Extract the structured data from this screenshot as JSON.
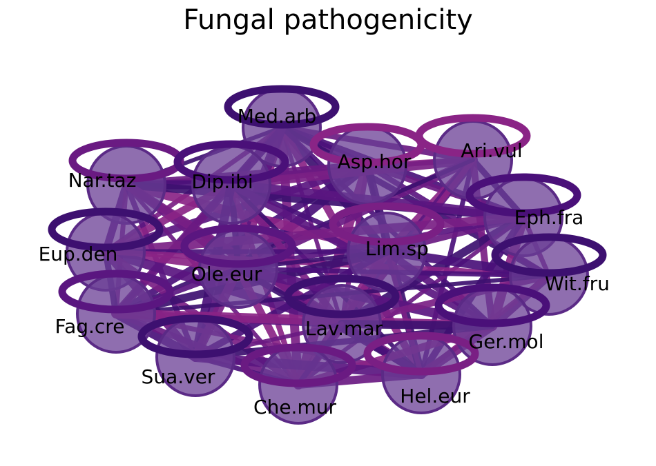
{
  "title": "Fungal pathogenicity",
  "colors": {
    "edge_palette": [
      "#3d1070",
      "#4a1079",
      "#5a1680",
      "#6a1a82",
      "#7a1f84",
      "#8a2486"
    ],
    "node_fill": "#6a3d94",
    "node_stroke": "#5b2a86",
    "background": "#ffffff"
  },
  "nodes": [
    {
      "id": "Med.arb",
      "label": "Med.arb",
      "color": "#3d1070"
    },
    {
      "id": "Asp.hor",
      "label": "Asp.hor",
      "color": "#8a2486"
    },
    {
      "id": "Ari.vul",
      "label": "Ari.vul",
      "color": "#8a2486"
    },
    {
      "id": "Nar.taz",
      "label": "Nar.taz",
      "color": "#6a1a82"
    },
    {
      "id": "Dip.ibi",
      "label": "Dip.ibi",
      "color": "#4a1079"
    },
    {
      "id": "Eph.fra",
      "label": "Eph.fra",
      "color": "#4a1079"
    },
    {
      "id": "Eup.den",
      "label": "Eup.den",
      "color": "#3d1070"
    },
    {
      "id": "Lim.sp",
      "label": "Lim.sp",
      "color": "#7a1f84"
    },
    {
      "id": "Ole.eur",
      "label": "Ole.eur",
      "color": "#5a1680"
    },
    {
      "id": "Wit.fru",
      "label": "Wit.fru",
      "color": "#3d1070"
    },
    {
      "id": "Fag.cre",
      "label": "Fag.cre",
      "color": "#5a1680"
    },
    {
      "id": "Lav.mar",
      "label": "Lav.mar",
      "color": "#3d1070"
    },
    {
      "id": "Ger.mol",
      "label": "Ger.mol",
      "color": "#4a1079"
    },
    {
      "id": "Sua.ver",
      "label": "Sua.ver",
      "color": "#3d1070"
    },
    {
      "id": "Che.mur",
      "label": "Che.mur",
      "color": "#6a1a82"
    },
    {
      "id": "Hel.eur",
      "label": "Hel.eur",
      "color": "#7a1f84"
    }
  ],
  "edges": [
    [
      "Med.arb",
      "Nar.taz"
    ],
    [
      "Med.arb",
      "Dip.ibi"
    ],
    [
      "Med.arb",
      "Asp.hor"
    ],
    [
      "Med.arb",
      "Ari.vul"
    ],
    [
      "Med.arb",
      "Eup.den"
    ],
    [
      "Med.arb",
      "Ole.eur"
    ],
    [
      "Med.arb",
      "Lim.sp"
    ],
    [
      "Med.arb",
      "Eph.fra"
    ],
    [
      "Med.arb",
      "Fag.cre"
    ],
    [
      "Med.arb",
      "Lav.mar"
    ],
    [
      "Med.arb",
      "Che.mur"
    ],
    [
      "Med.arb",
      "Hel.eur"
    ],
    [
      "Med.arb",
      "Wit.fru"
    ],
    [
      "Med.arb",
      "Ger.mol"
    ],
    [
      "Med.arb",
      "Sua.ver"
    ],
    [
      "Asp.hor",
      "Nar.taz"
    ],
    [
      "Asp.hor",
      "Dip.ibi"
    ],
    [
      "Asp.hor",
      "Ari.vul"
    ],
    [
      "Asp.hor",
      "Lim.sp"
    ],
    [
      "Asp.hor",
      "Ole.eur"
    ],
    [
      "Asp.hor",
      "Eup.den"
    ],
    [
      "Asp.hor",
      "Eph.fra"
    ],
    [
      "Asp.hor",
      "Lav.mar"
    ],
    [
      "Asp.hor",
      "Che.mur"
    ],
    [
      "Asp.hor",
      "Hel.eur"
    ],
    [
      "Asp.hor",
      "Fag.cre"
    ],
    [
      "Asp.hor",
      "Wit.fru"
    ],
    [
      "Ari.vul",
      "Nar.taz"
    ],
    [
      "Ari.vul",
      "Dip.ibi"
    ],
    [
      "Ari.vul",
      "Lim.sp"
    ],
    [
      "Ari.vul",
      "Eph.fra"
    ],
    [
      "Ari.vul",
      "Hel.eur"
    ],
    [
      "Ari.vul",
      "Lav.mar"
    ],
    [
      "Ari.vul",
      "Ole.eur"
    ],
    [
      "Ari.vul",
      "Ger.mol"
    ],
    [
      "Ari.vul",
      "Che.mur"
    ],
    [
      "Ari.vul",
      "Fag.cre"
    ],
    [
      "Nar.taz",
      "Dip.ibi"
    ],
    [
      "Nar.taz",
      "Eup.den"
    ],
    [
      "Nar.taz",
      "Ole.eur"
    ],
    [
      "Nar.taz",
      "Fag.cre"
    ],
    [
      "Nar.taz",
      "Lim.sp"
    ],
    [
      "Nar.taz",
      "Eph.fra"
    ],
    [
      "Nar.taz",
      "Lav.mar"
    ],
    [
      "Nar.taz",
      "Sua.ver"
    ],
    [
      "Nar.taz",
      "Che.mur"
    ],
    [
      "Nar.taz",
      "Hel.eur"
    ],
    [
      "Dip.ibi",
      "Eup.den"
    ],
    [
      "Dip.ibi",
      "Ole.eur"
    ],
    [
      "Dip.ibi",
      "Lim.sp"
    ],
    [
      "Dip.ibi",
      "Eph.fra"
    ],
    [
      "Dip.ibi",
      "Fag.cre"
    ],
    [
      "Dip.ibi",
      "Lav.mar"
    ],
    [
      "Dip.ibi",
      "Che.mur"
    ],
    [
      "Dip.ibi",
      "Hel.eur"
    ],
    [
      "Dip.ibi",
      "Sua.ver"
    ],
    [
      "Dip.ibi",
      "Ger.mol"
    ],
    [
      "Eph.fra",
      "Lim.sp"
    ],
    [
      "Eph.fra",
      "Wit.fru"
    ],
    [
      "Eph.fra",
      "Ger.mol"
    ],
    [
      "Eph.fra",
      "Lav.mar"
    ],
    [
      "Eph.fra",
      "Hel.eur"
    ],
    [
      "Eph.fra",
      "Ole.eur"
    ],
    [
      "Eph.fra",
      "Che.mur"
    ],
    [
      "Eph.fra",
      "Eup.den"
    ],
    [
      "Eup.den",
      "Ole.eur"
    ],
    [
      "Eup.den",
      "Fag.cre"
    ],
    [
      "Eup.den",
      "Lim.sp"
    ],
    [
      "Eup.den",
      "Lav.mar"
    ],
    [
      "Eup.den",
      "Sua.ver"
    ],
    [
      "Eup.den",
      "Che.mur"
    ],
    [
      "Eup.den",
      "Wit.fru"
    ],
    [
      "Lim.sp",
      "Ole.eur"
    ],
    [
      "Lim.sp",
      "Wit.fru"
    ],
    [
      "Lim.sp",
      "Ger.mol"
    ],
    [
      "Lim.sp",
      "Lav.mar"
    ],
    [
      "Lim.sp",
      "Hel.eur"
    ],
    [
      "Lim.sp",
      "Che.mur"
    ],
    [
      "Lim.sp",
      "Fag.cre"
    ],
    [
      "Lim.sp",
      "Sua.ver"
    ],
    [
      "Ole.eur",
      "Fag.cre"
    ],
    [
      "Ole.eur",
      "Lav.mar"
    ],
    [
      "Ole.eur",
      "Sua.ver"
    ],
    [
      "Ole.eur",
      "Che.mur"
    ],
    [
      "Ole.eur",
      "Hel.eur"
    ],
    [
      "Ole.eur",
      "Wit.fru"
    ],
    [
      "Ole.eur",
      "Ger.mol"
    ],
    [
      "Wit.fru",
      "Ger.mol"
    ],
    [
      "Wit.fru",
      "Lav.mar"
    ],
    [
      "Wit.fru",
      "Hel.eur"
    ],
    [
      "Wit.fru",
      "Fag.cre"
    ],
    [
      "Fag.cre",
      "Sua.ver"
    ],
    [
      "Fag.cre",
      "Lav.mar"
    ],
    [
      "Fag.cre",
      "Che.mur"
    ],
    [
      "Fag.cre",
      "Hel.eur"
    ],
    [
      "Fag.cre",
      "Ger.mol"
    ],
    [
      "Lav.mar",
      "Ger.mol"
    ],
    [
      "Lav.mar",
      "Hel.eur"
    ],
    [
      "Lav.mar",
      "Che.mur"
    ],
    [
      "Lav.mar",
      "Sua.ver"
    ],
    [
      "Ger.mol",
      "Hel.eur"
    ],
    [
      "Ger.mol",
      "Che.mur"
    ],
    [
      "Ger.mol",
      "Sua.ver"
    ],
    [
      "Sua.ver",
      "Che.mur"
    ],
    [
      "Sua.ver",
      "Hel.eur"
    ],
    [
      "Che.mur",
      "Hel.eur"
    ]
  ]
}
